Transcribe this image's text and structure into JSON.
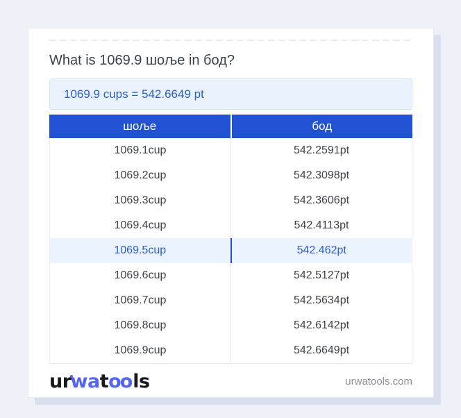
{
  "page": {
    "title": "What is 1069.9 шоље in бод?",
    "conversion_summary": "1069.9 cups = 542.6649 pt"
  },
  "table": {
    "headers": [
      "шоље",
      "бод"
    ],
    "rows": [
      {
        "cup": "1069.1cup",
        "pt": "542.2591pt",
        "highlighted": false
      },
      {
        "cup": "1069.2cup",
        "pt": "542.3098pt",
        "highlighted": false
      },
      {
        "cup": "1069.3cup",
        "pt": "542.3606pt",
        "highlighted": false
      },
      {
        "cup": "1069.4cup",
        "pt": "542.4113pt",
        "highlighted": false
      },
      {
        "cup": "1069.5cup",
        "pt": "542.462pt",
        "highlighted": true
      },
      {
        "cup": "1069.6cup",
        "pt": "542.5127pt",
        "highlighted": false
      },
      {
        "cup": "1069.7cup",
        "pt": "542.5634pt",
        "highlighted": false
      },
      {
        "cup": "1069.8cup",
        "pt": "542.6142pt",
        "highlighted": false
      },
      {
        "cup": "1069.9cup",
        "pt": "542.6649pt",
        "highlighted": false
      }
    ]
  },
  "footer": {
    "logo_parts": [
      "ur",
      "wa",
      "t",
      "oo",
      "ls"
    ],
    "site_url": "urwatools.com"
  },
  "colors": {
    "page_bg": "#eef1f8",
    "card_shadow": "#d9dfee",
    "header_bg": "#2252d4",
    "accent_blue": "#2c5fc7",
    "highlight_row_bg": "#ebf3fe",
    "highlight_divider": "#1d4fd0",
    "logo_blue": "#5566ee",
    "muted_text": "#8b919c"
  }
}
